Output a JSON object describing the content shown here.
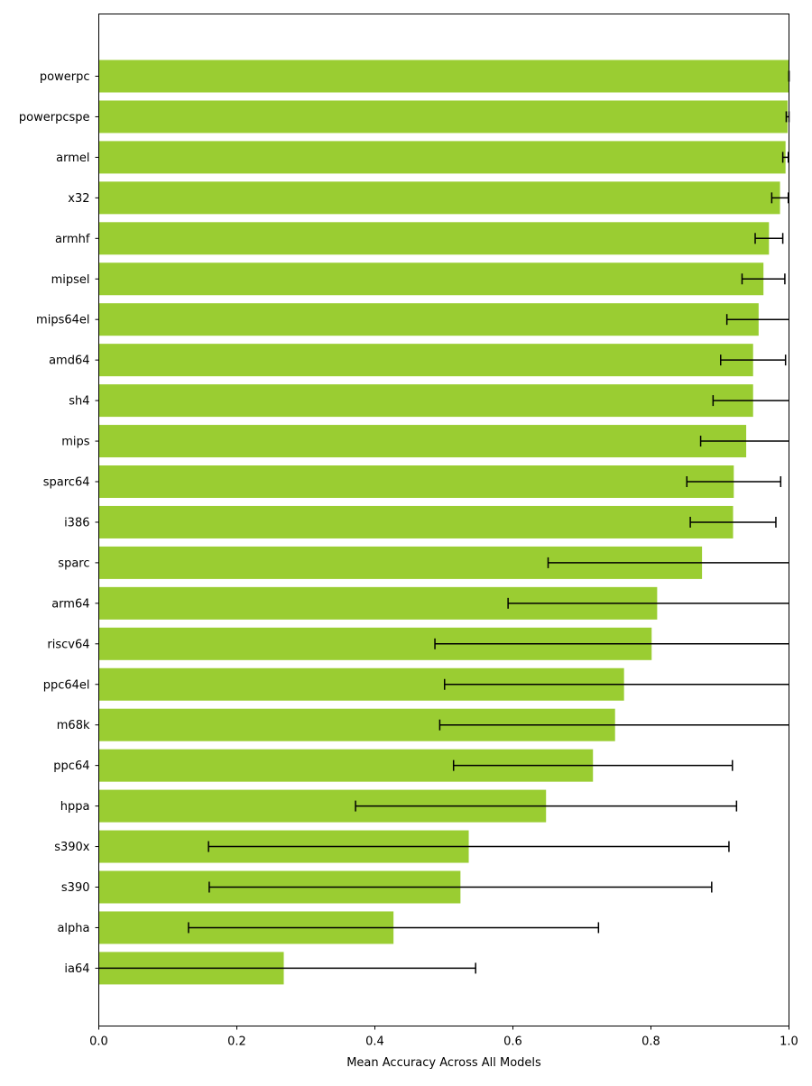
{
  "chart_data": {
    "type": "bar",
    "orientation": "horizontal",
    "categories": [
      "powerpc",
      "powerpcspe",
      "armel",
      "x32",
      "armhf",
      "mipsel",
      "mips64el",
      "amd64",
      "sh4",
      "mips",
      "sparc64",
      "i386",
      "sparc",
      "arm64",
      "riscv64",
      "ppc64el",
      "m68k",
      "ppc64",
      "hppa",
      "s390x",
      "s390",
      "alpha",
      "ia64"
    ],
    "values": [
      1.0,
      0.998,
      0.995,
      0.987,
      0.971,
      0.963,
      0.956,
      0.948,
      0.948,
      0.938,
      0.92,
      0.919,
      0.874,
      0.809,
      0.801,
      0.761,
      0.748,
      0.716,
      0.648,
      0.536,
      0.524,
      0.427,
      0.268
    ],
    "errors": [
      0.0,
      0.002,
      0.004,
      0.012,
      0.02,
      0.031,
      0.046,
      0.047,
      0.058,
      0.066,
      0.068,
      0.062,
      0.223,
      0.216,
      0.314,
      0.26,
      0.254,
      0.202,
      0.276,
      0.377,
      0.364,
      0.297,
      0.278
    ],
    "bar_color": "#9acd32",
    "errorbar_color": "#000000",
    "xlabel": "Mean Accuracy Across All Models",
    "ylabel": "",
    "title": "",
    "xlim": [
      0.0,
      1.0
    ],
    "xticks": [
      0.0,
      0.2,
      0.4,
      0.6,
      0.8,
      1.0
    ],
    "xtick_labels": [
      "0.0",
      "0.2",
      "0.4",
      "0.6",
      "0.8",
      "1.0"
    ],
    "grid": false,
    "legend": "none"
  }
}
